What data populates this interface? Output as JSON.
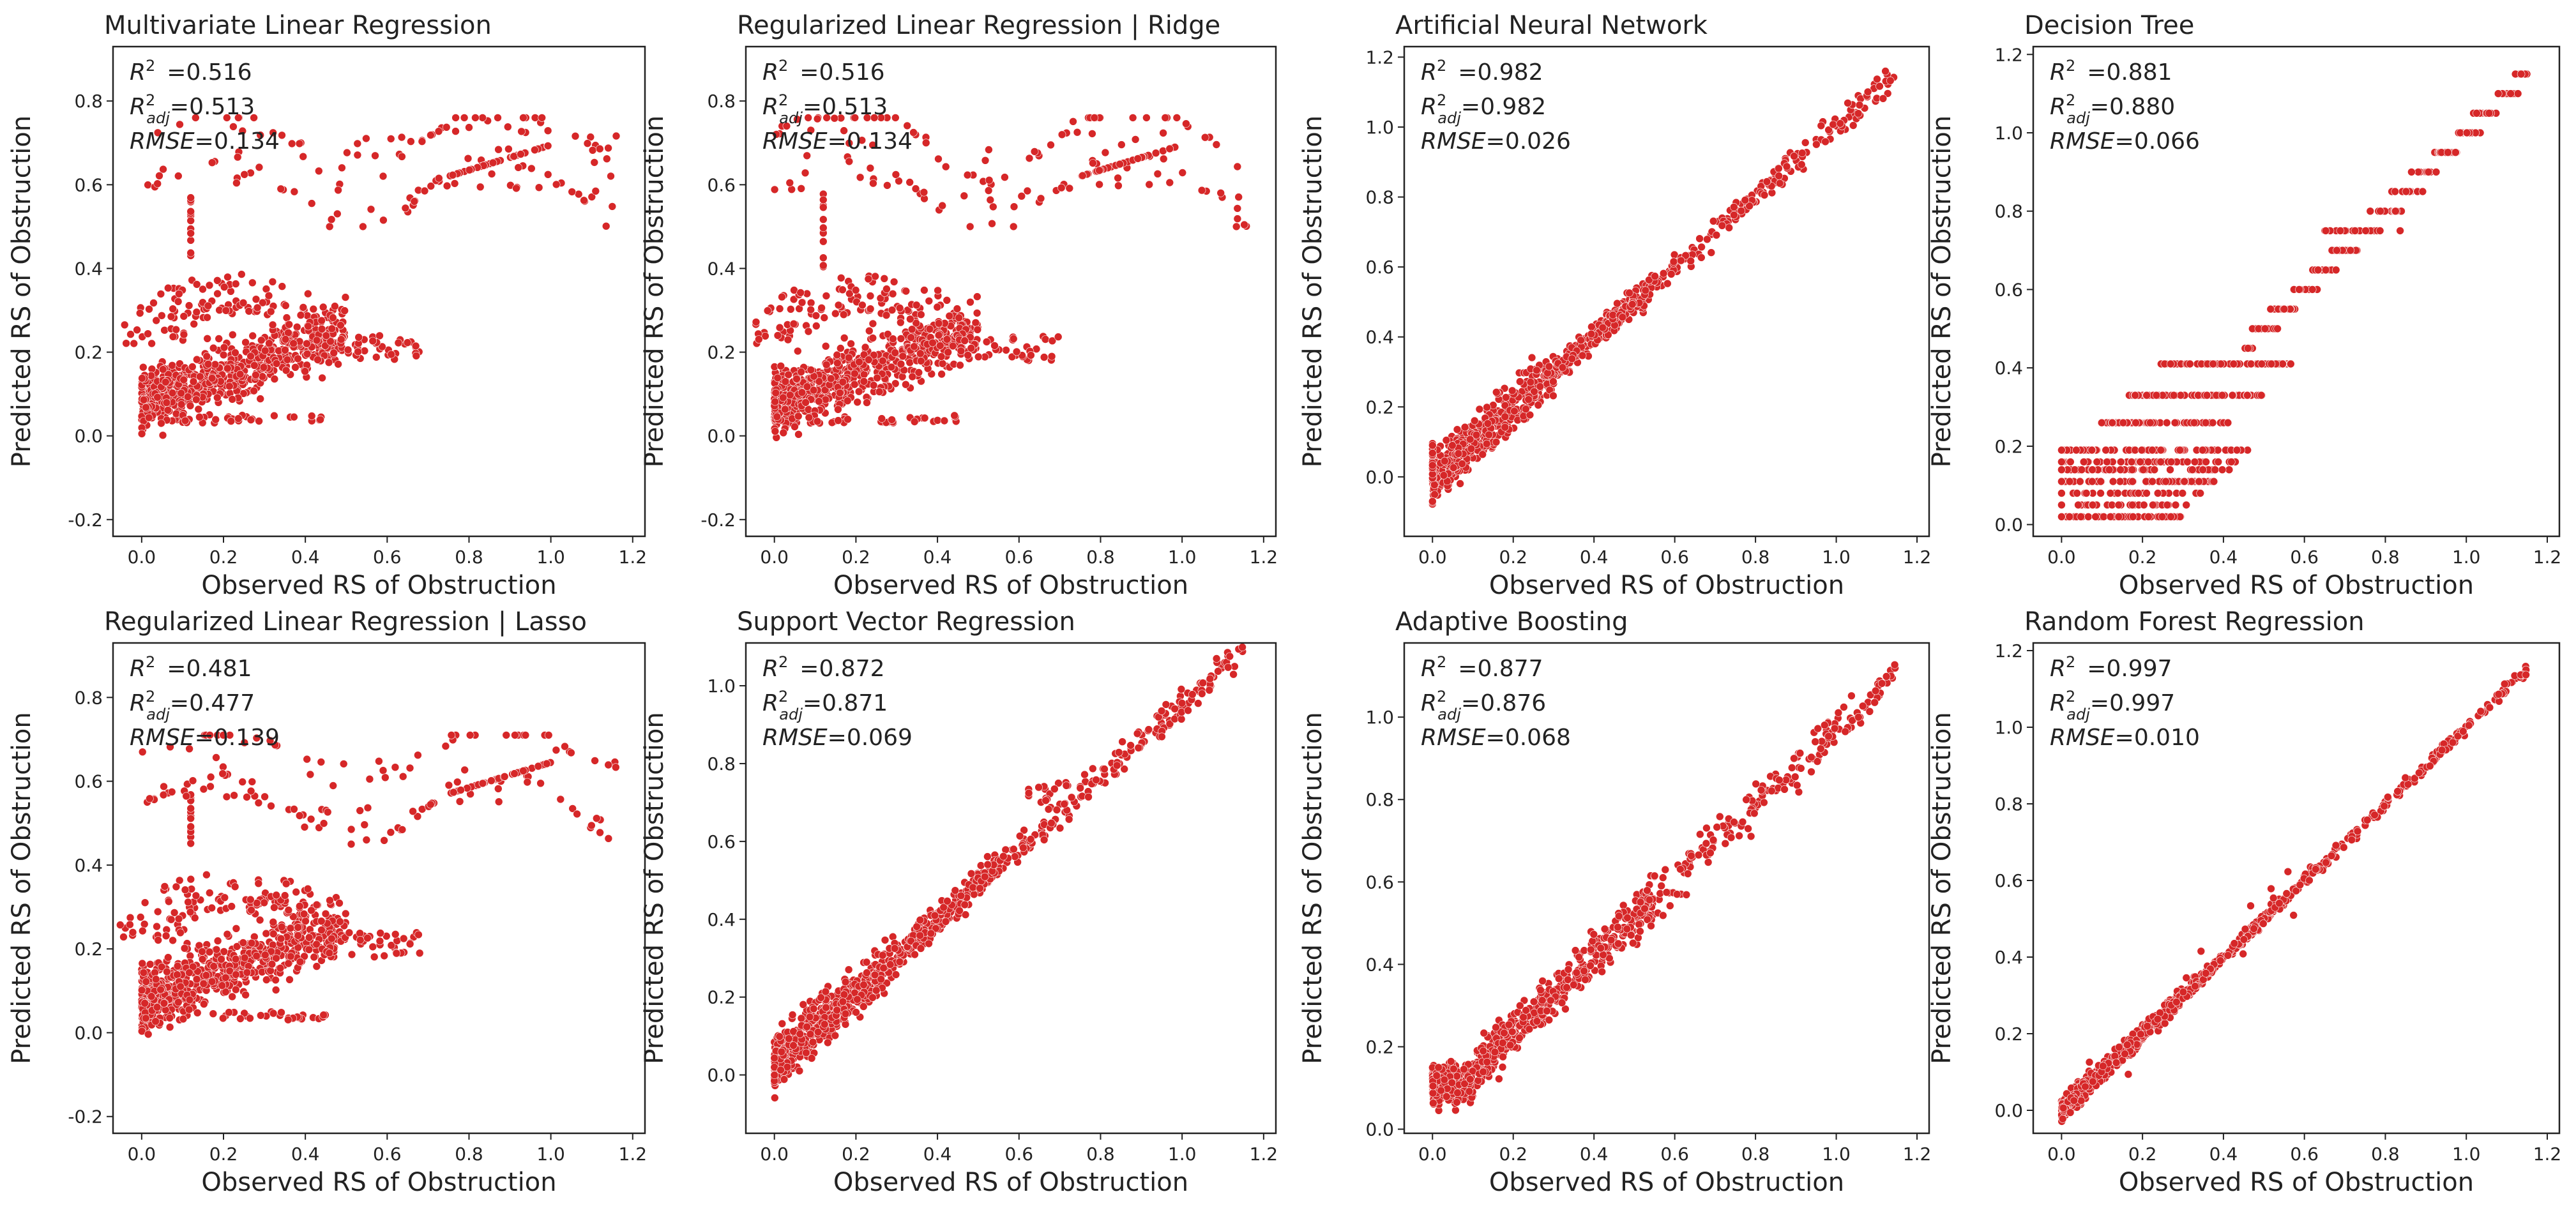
{
  "figure": {
    "point_color": "#d62728",
    "panels": [
      {
        "title": "Multivariate Linear Regression",
        "stats": {
          "r2": "=0.516",
          "r2adj": "=0.513",
          "rmse": "=0.134"
        },
        "xlabel": "Observed RS of Obstruction",
        "ylabel": "Predicted RS of Obstruction",
        "xlim": [
          -0.07,
          1.23
        ],
        "ylim": [
          -0.24,
          0.93
        ],
        "xticks": [
          "0.0",
          "0.2",
          "0.4",
          "0.6",
          "0.8",
          "1.0",
          "1.2"
        ],
        "yticks": [
          "-0.2",
          "0.0",
          "0.2",
          "0.4",
          "0.6",
          "0.8"
        ],
        "pattern": "linear",
        "param": 0.6
      },
      {
        "title": "Regularized Linear Regression | Ridge",
        "stats": {
          "r2": "=0.516",
          "r2adj": "=0.513",
          "rmse": "=0.134"
        },
        "xlabel": "Observed RS of Obstruction",
        "ylabel": "Predicted RS of Obstruction",
        "xlim": [
          -0.07,
          1.23
        ],
        "ylim": [
          -0.24,
          0.93
        ],
        "xticks": [
          "0.0",
          "0.2",
          "0.4",
          "0.6",
          "0.8",
          "1.0",
          "1.2"
        ],
        "yticks": [
          "-0.2",
          "0.0",
          "0.2",
          "0.4",
          "0.6",
          "0.8"
        ],
        "pattern": "linear",
        "param": 0.6
      },
      {
        "title": "Artificial Neural Network",
        "stats": {
          "r2": "=0.982",
          "r2adj": "=0.982",
          "rmse": "=0.026"
        },
        "xlabel": "Observed RS of Obstruction",
        "ylabel": "Predicted RS of Obstruction",
        "xlim": [
          -0.07,
          1.23
        ],
        "ylim": [
          -0.17,
          1.23
        ],
        "xticks": [
          "0.0",
          "0.2",
          "0.4",
          "0.6",
          "0.8",
          "1.0",
          "1.2"
        ],
        "yticks": [
          "0.0",
          "0.2",
          "0.4",
          "0.6",
          "0.8",
          "1.0",
          "1.2"
        ],
        "pattern": "tight",
        "param": 0.025
      },
      {
        "title": "Decision Tree",
        "stats": {
          "r2": "=0.881",
          "r2adj": "=0.880",
          "rmse": "=0.066"
        },
        "xlabel": "Observed RS of Obstruction",
        "ylabel": "Predicted RS of Obstruction",
        "xlim": [
          -0.07,
          1.23
        ],
        "ylim": [
          -0.03,
          1.22
        ],
        "xticks": [
          "0.0",
          "0.2",
          "0.4",
          "0.6",
          "0.8",
          "1.0",
          "1.2"
        ],
        "yticks": [
          "0.0",
          "0.2",
          "0.4",
          "0.6",
          "0.8",
          "1.0",
          "1.2"
        ],
        "pattern": "tree",
        "param": 0
      },
      {
        "title": "Regularized Linear Regression | Lasso",
        "stats": {
          "r2": "=0.481",
          "r2adj": "=0.477",
          "rmse": "=0.139"
        },
        "xlabel": "Observed RS of Obstruction",
        "ylabel": "Predicted RS of Obstruction",
        "xlim": [
          -0.07,
          1.23
        ],
        "ylim": [
          -0.24,
          0.93
        ],
        "xticks": [
          "0.0",
          "0.2",
          "0.4",
          "0.6",
          "0.8",
          "1.0",
          "1.2"
        ],
        "yticks": [
          "-0.2",
          "0.0",
          "0.2",
          "0.4",
          "0.6",
          "0.8"
        ],
        "pattern": "linear",
        "param": 0.55
      },
      {
        "title": "Support Vector Regression",
        "stats": {
          "r2": "=0.872",
          "r2adj": "=0.871",
          "rmse": "=0.069"
        },
        "xlabel": "Observed RS of Obstruction",
        "ylabel": "Predicted RS of Obstruction",
        "xlim": [
          -0.07,
          1.23
        ],
        "ylim": [
          -0.15,
          1.11
        ],
        "xticks": [
          "0.0",
          "0.2",
          "0.4",
          "0.6",
          "0.8",
          "1.0",
          "1.2"
        ],
        "yticks": [
          "0.0",
          "0.2",
          "0.4",
          "0.6",
          "0.8",
          "1.0"
        ],
        "pattern": "svr",
        "param": 0.06
      },
      {
        "title": "Adaptive Boosting",
        "stats": {
          "r2": "=0.877",
          "r2adj": "=0.876",
          "rmse": "=0.068"
        },
        "xlabel": "Observed RS of Obstruction",
        "ylabel": "Predicted RS of Obstruction",
        "xlim": [
          -0.07,
          1.23
        ],
        "ylim": [
          -0.01,
          1.18
        ],
        "xticks": [
          "0.0",
          "0.2",
          "0.4",
          "0.6",
          "0.8",
          "1.0",
          "1.2"
        ],
        "yticks": [
          "0.0",
          "0.2",
          "0.4",
          "0.6",
          "0.8",
          "1.0"
        ],
        "pattern": "ada",
        "param": 0.05
      },
      {
        "title": "Random Forest Regression",
        "stats": {
          "r2": "=0.997",
          "r2adj": "=0.997",
          "rmse": "=0.010"
        },
        "xlabel": "Observed RS of Obstruction",
        "ylabel": "Predicted RS of Obstruction",
        "xlim": [
          -0.07,
          1.23
        ],
        "ylim": [
          -0.06,
          1.22
        ],
        "xticks": [
          "0.0",
          "0.2",
          "0.4",
          "0.6",
          "0.8",
          "1.0",
          "1.2"
        ],
        "yticks": [
          "0.0",
          "0.2",
          "0.4",
          "0.6",
          "0.8",
          "1.0",
          "1.2"
        ],
        "pattern": "tight",
        "param": 0.01
      }
    ]
  },
  "chart_data": [
    {
      "type": "scatter",
      "title": "Multivariate Linear Regression",
      "xlabel": "Observed RS of Obstruction",
      "ylabel": "Predicted RS of Obstruction",
      "xlim": [
        -0.07,
        1.23
      ],
      "ylim": [
        -0.24,
        0.93
      ],
      "annotations": [
        "R2 =0.516",
        "R2adj=0.513",
        "RMSE=0.134"
      ]
    },
    {
      "type": "scatter",
      "title": "Regularized Linear Regression | Ridge",
      "xlabel": "Observed RS of Obstruction",
      "ylabel": "Predicted RS of Obstruction",
      "xlim": [
        -0.07,
        1.23
      ],
      "ylim": [
        -0.24,
        0.93
      ],
      "annotations": [
        "R2 =0.516",
        "R2adj=0.513",
        "RMSE=0.134"
      ]
    },
    {
      "type": "scatter",
      "title": "Artificial Neural Network",
      "xlabel": "Observed RS of Obstruction",
      "ylabel": "Predicted RS of Obstruction",
      "xlim": [
        -0.07,
        1.23
      ],
      "ylim": [
        -0.17,
        1.23
      ],
      "annotations": [
        "R2 =0.982",
        "R2adj=0.982",
        "RMSE=0.026"
      ]
    },
    {
      "type": "scatter",
      "title": "Decision Tree",
      "xlabel": "Observed RS of Obstruction",
      "ylabel": "Predicted RS of Obstruction",
      "xlim": [
        -0.07,
        1.23
      ],
      "ylim": [
        -0.03,
        1.22
      ],
      "annotations": [
        "R2 =0.881",
        "R2adj=0.880",
        "RMSE=0.066"
      ]
    },
    {
      "type": "scatter",
      "title": "Regularized Linear Regression | Lasso",
      "xlabel": "Observed RS of Obstruction",
      "ylabel": "Predicted RS of Obstruction",
      "xlim": [
        -0.07,
        1.23
      ],
      "ylim": [
        -0.24,
        0.93
      ],
      "annotations": [
        "R2 =0.481",
        "R2adj=0.477",
        "RMSE=0.139"
      ]
    },
    {
      "type": "scatter",
      "title": "Support Vector Regression",
      "xlabel": "Observed RS of Obstruction",
      "ylabel": "Predicted RS of Obstruction",
      "xlim": [
        -0.07,
        1.23
      ],
      "ylim": [
        -0.15,
        1.11
      ],
      "annotations": [
        "R2 =0.872",
        "R2adj=0.871",
        "RMSE=0.069"
      ]
    },
    {
      "type": "scatter",
      "title": "Adaptive Boosting",
      "xlabel": "Observed RS of Obstruction",
      "ylabel": "Predicted RS of Obstruction",
      "xlim": [
        -0.07,
        1.23
      ],
      "ylim": [
        -0.01,
        1.18
      ],
      "annotations": [
        "R2 =0.877",
        "R2adj=0.876",
        "RMSE=0.068"
      ]
    },
    {
      "type": "scatter",
      "title": "Random Forest Regression",
      "xlabel": "Observed RS of Obstruction",
      "ylabel": "Predicted RS of Obstruction",
      "xlim": [
        -0.07,
        1.23
      ],
      "ylim": [
        -0.06,
        1.22
      ],
      "annotations": [
        "R2 =0.997",
        "R2adj=0.997",
        "RMSE=0.010"
      ]
    }
  ]
}
